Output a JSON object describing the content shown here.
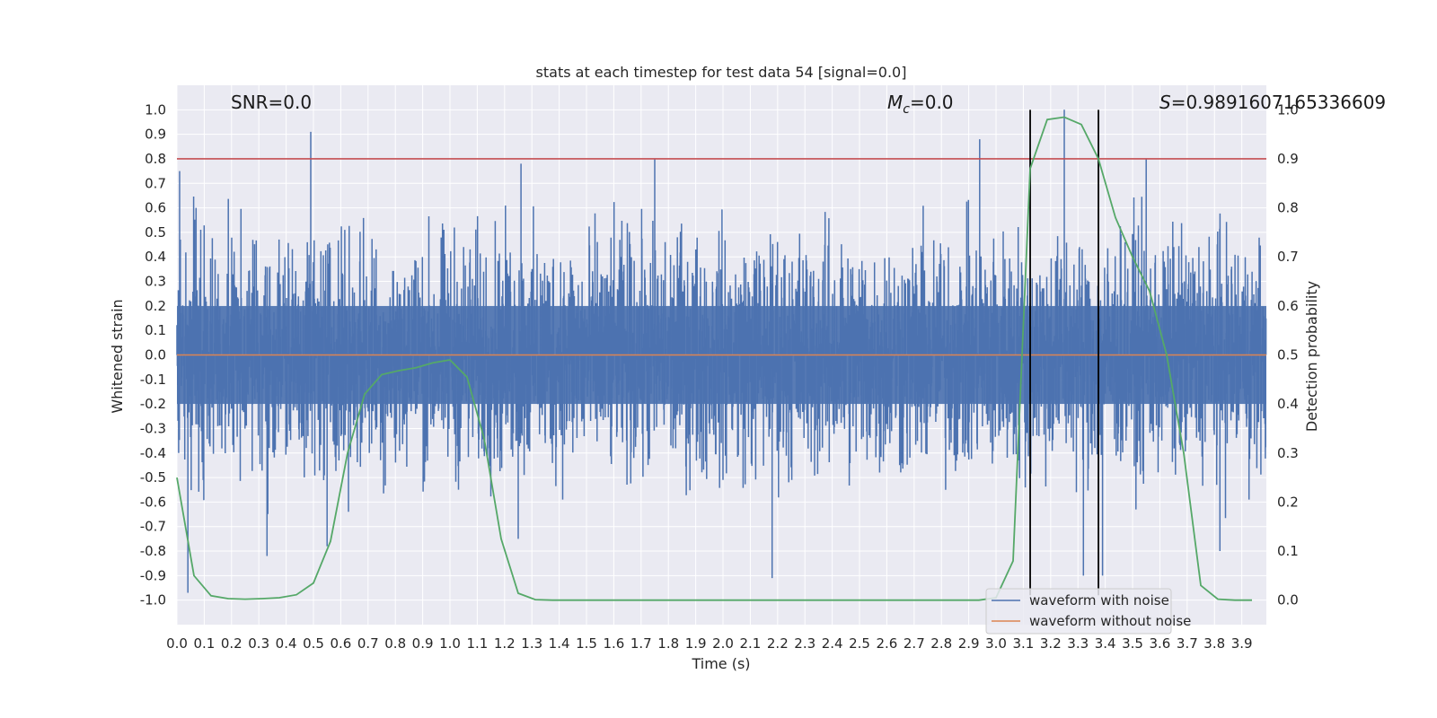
{
  "chart_data": {
    "type": "line",
    "title": "stats at each timestep for test data 54 [signal=0.0]",
    "xlabel": "Time (s)",
    "ylabel": "Whitened strain",
    "y2label": "Detection probability",
    "xlim": [
      0.0,
      3.99
    ],
    "ylim": [
      -1.1,
      1.1
    ],
    "y2lim": [
      -0.05,
      1.05
    ],
    "x_ticks": [
      "0.0",
      "0.1",
      "0.2",
      "0.3",
      "0.4",
      "0.5",
      "0.6",
      "0.7",
      "0.8",
      "0.9",
      "1.0",
      "1.1",
      "1.2",
      "1.3",
      "1.4",
      "1.5",
      "1.6",
      "1.7",
      "1.8",
      "1.9",
      "2.0",
      "2.1",
      "2.2",
      "2.3",
      "2.4",
      "2.5",
      "2.6",
      "2.7",
      "2.8",
      "2.9",
      "3.0",
      "3.1",
      "3.2",
      "3.3",
      "3.4",
      "3.5",
      "3.6",
      "3.7",
      "3.8",
      "3.9"
    ],
    "y_ticks": [
      "1.0",
      "0.9",
      "0.8",
      "0.7",
      "0.6",
      "0.5",
      "0.4",
      "0.3",
      "0.2",
      "0.1",
      "0.0",
      "-0.1",
      "-0.2",
      "-0.3",
      "-0.4",
      "-0.5",
      "-0.6",
      "-0.7",
      "-0.8",
      "-0.9",
      "-1.0"
    ],
    "y2_ticks": [
      "1.0",
      "0.9",
      "0.8",
      "0.7",
      "0.6",
      "0.5",
      "0.4",
      "0.3",
      "0.2",
      "0.1",
      "0.0"
    ],
    "grid": true,
    "legend_position": "bottom-right",
    "series": [
      {
        "name": "waveform with noise",
        "axis": "left",
        "color": "#4c72b0",
        "description_range": [
          -1.0,
          1.0
        ],
        "spikes": [
          {
            "x": 0.01,
            "y": 0.75
          },
          {
            "x": 0.04,
            "y": -0.97
          },
          {
            "x": 0.07,
            "y": 0.6
          },
          {
            "x": 0.33,
            "y": -0.82
          },
          {
            "x": 0.49,
            "y": 0.91
          },
          {
            "x": 0.55,
            "y": -0.78
          },
          {
            "x": 1.25,
            "y": -0.75
          },
          {
            "x": 1.26,
            "y": 0.78
          },
          {
            "x": 1.75,
            "y": 0.8
          },
          {
            "x": 2.18,
            "y": -0.91
          },
          {
            "x": 2.94,
            "y": 0.88
          },
          {
            "x": 3.25,
            "y": 1.0
          },
          {
            "x": 3.32,
            "y": -0.9
          },
          {
            "x": 3.39,
            "y": -0.9
          },
          {
            "x": 3.55,
            "y": 0.8
          },
          {
            "x": 3.82,
            "y": -0.8
          }
        ]
      },
      {
        "name": "waveform without noise",
        "axis": "left",
        "color": "#dd8452",
        "x": [
          0.0,
          3.99
        ],
        "y": [
          0.0,
          0.0
        ]
      },
      {
        "name": "",
        "axis": "right",
        "color": "#55a868",
        "x": [
          0.0,
          0.0625,
          0.125,
          0.1875,
          0.25,
          0.3125,
          0.375,
          0.4375,
          0.5,
          0.5625,
          0.625,
          0.6875,
          0.75,
          0.8125,
          0.875,
          0.9375,
          1.0,
          1.0625,
          1.125,
          1.1875,
          1.25,
          1.3125,
          1.375,
          1.5,
          2.0,
          2.5,
          2.9375,
          3.0,
          3.0625,
          3.125,
          3.1875,
          3.25,
          3.3125,
          3.375,
          3.4375,
          3.5,
          3.5625,
          3.625,
          3.6875,
          3.75,
          3.8125,
          3.875,
          3.9375
        ],
        "y": [
          0.25,
          0.05,
          0.009,
          0.003,
          0.002,
          0.003,
          0.005,
          0.011,
          0.035,
          0.12,
          0.3,
          0.42,
          0.46,
          0.468,
          0.474,
          0.484,
          0.49,
          0.455,
          0.33,
          0.125,
          0.014,
          0.001,
          0.0,
          0.0,
          0.0,
          0.0,
          0.0,
          0.005,
          0.08,
          0.88,
          0.98,
          0.985,
          0.97,
          0.9,
          0.78,
          0.7,
          0.63,
          0.5,
          0.3,
          0.03,
          0.002,
          0.0,
          0.0
        ]
      }
    ],
    "hlines": [
      {
        "y2": 0.9,
        "color": "#c44e52"
      }
    ],
    "vlines": [
      {
        "x": 3.125,
        "color": "#000000"
      },
      {
        "x": 3.375,
        "color": "#000000"
      }
    ],
    "annotations": {
      "snr": "SNR=0.0",
      "mc_symbol": "M",
      "mc_sub": "c",
      "mc_value": "=0.0",
      "s_symbol": "S",
      "s_value": "=0.9891607165336609"
    }
  }
}
